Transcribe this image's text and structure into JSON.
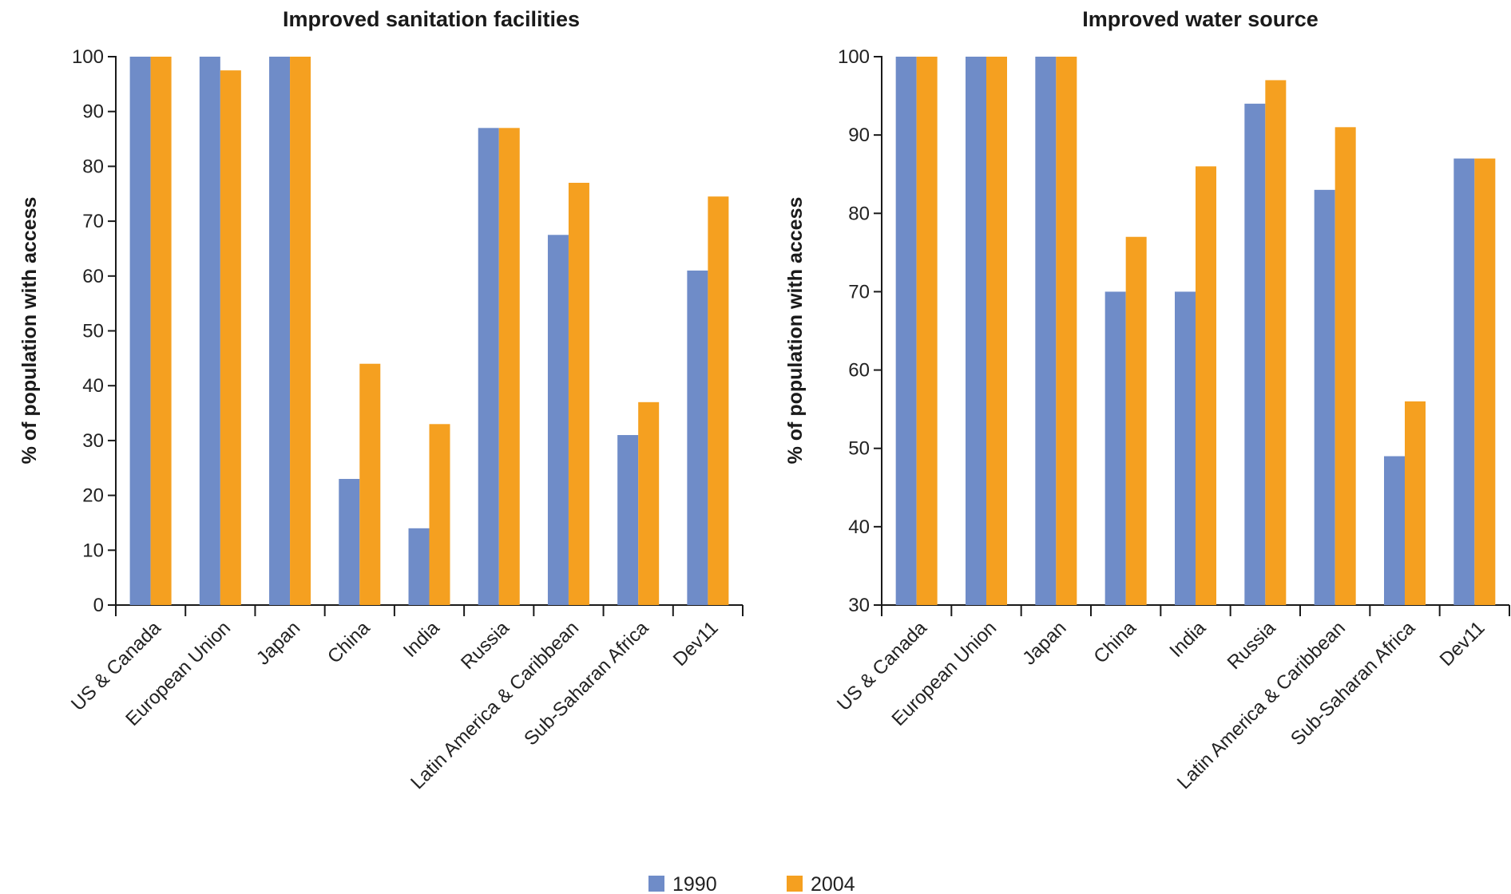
{
  "legend": {
    "items": [
      {
        "label": "1990",
        "color": "#6f8cc8"
      },
      {
        "label": "2004",
        "color": "#f5a020"
      }
    ]
  },
  "chart_data": [
    {
      "type": "bar",
      "title": "Improved sanitation facilities",
      "xlabel": "",
      "ylabel": "% of population with access",
      "ylim": [
        0,
        100
      ],
      "yticks": [
        0,
        10,
        20,
        30,
        40,
        50,
        60,
        70,
        80,
        90,
        100
      ],
      "grid": false,
      "categories": [
        "US & Canada",
        "European Union",
        "Japan",
        "China",
        "India",
        "Russia",
        "Latin America & Caribbean",
        "Sub-Saharan Africa",
        "Dev11"
      ],
      "series": [
        {
          "name": "1990",
          "color": "#6f8cc8",
          "values": [
            100,
            100,
            100,
            23,
            14,
            87,
            67.5,
            31,
            61
          ]
        },
        {
          "name": "2004",
          "color": "#f5a020",
          "values": [
            100,
            97.5,
            100,
            44,
            33,
            87,
            77,
            37,
            74.5
          ]
        }
      ]
    },
    {
      "type": "bar",
      "title": "Improved water source",
      "xlabel": "",
      "ylabel": "% of population with access",
      "ylim": [
        30,
        100
      ],
      "yticks": [
        30,
        40,
        50,
        60,
        70,
        80,
        90,
        100
      ],
      "grid": false,
      "categories": [
        "US & Canada",
        "European Union",
        "Japan",
        "China",
        "India",
        "Russia",
        "Latin America & Caribbean",
        "Sub-Saharan Africa",
        "Dev11"
      ],
      "series": [
        {
          "name": "1990",
          "color": "#6f8cc8",
          "values": [
            100,
            100,
            100,
            70,
            70,
            94,
            83,
            49,
            87
          ]
        },
        {
          "name": "2004",
          "color": "#f5a020",
          "values": [
            100,
            100,
            100,
            77,
            86,
            97,
            91,
            56,
            87
          ]
        }
      ]
    }
  ]
}
